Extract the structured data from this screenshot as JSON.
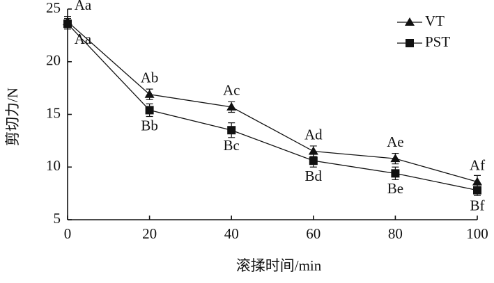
{
  "chart_data": {
    "type": "line",
    "x_label": "滚揉时间/min",
    "y_label": "剪切力/N",
    "x": [
      0,
      20,
      40,
      60,
      80,
      100
    ],
    "xlim": [
      0,
      100
    ],
    "xticks": [
      0,
      20,
      40,
      60,
      80,
      100
    ],
    "ylim": [
      5,
      25
    ],
    "yticks": [
      5,
      10,
      15,
      20,
      25
    ],
    "legend": "upper right",
    "series": [
      {
        "name": "VT",
        "marker": "triangle",
        "color": "#111111",
        "values": [
          23.8,
          16.9,
          15.7,
          11.5,
          10.8,
          8.6
        ],
        "errors": [
          0.5,
          0.5,
          0.5,
          0.5,
          0.5,
          0.6
        ],
        "labels": [
          "Aa",
          "Ab",
          "Ac",
          "Ad",
          "Ae",
          "Af"
        ]
      },
      {
        "name": "PST",
        "marker": "square",
        "color": "#111111",
        "values": [
          23.6,
          15.4,
          13.5,
          10.6,
          9.4,
          7.8
        ],
        "errors": [
          0.5,
          0.6,
          0.7,
          0.6,
          0.6,
          0.5
        ],
        "labels": [
          "Aa",
          "Bb",
          "Bc",
          "Bd",
          "Be",
          "Bf"
        ]
      }
    ]
  }
}
